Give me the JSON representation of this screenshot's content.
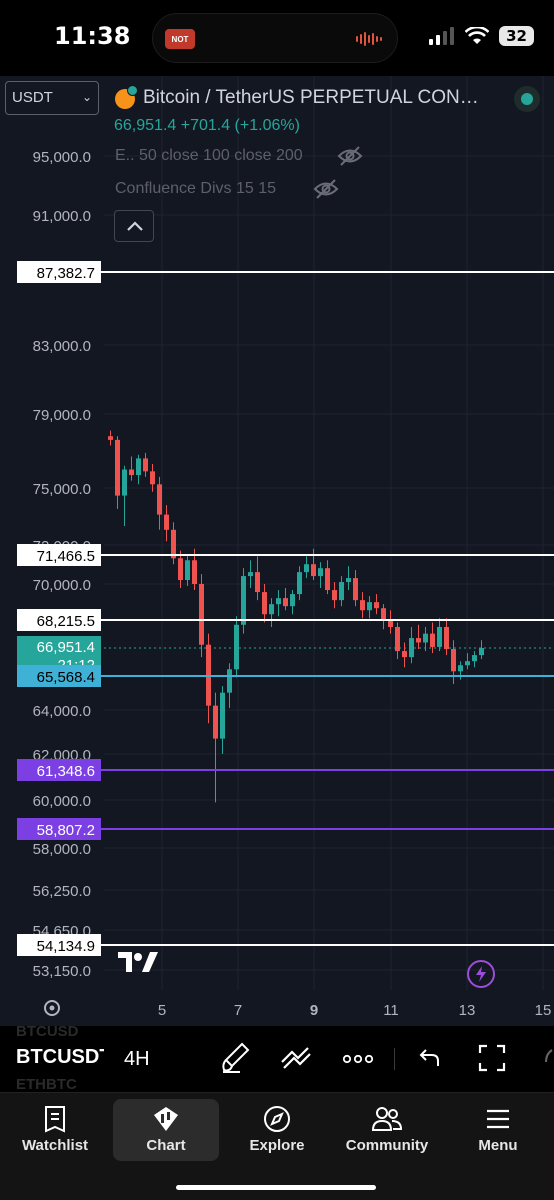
{
  "status": {
    "time": "11:38",
    "island_badge": "NOT",
    "battery": "32"
  },
  "header": {
    "currency_select": "USDT",
    "currency_chevron": "⌄",
    "symbol_title": "Bitcoin / TetherUS PERPETUAL CON…",
    "price_line": "66,951.4 +701.4 (+1.06%)",
    "indicators": [
      "E.. 50 close 100 close 200",
      "Confluence Divs 15 15"
    ]
  },
  "colors": {
    "background": "#131722",
    "grid": "#1f2330",
    "up": "#26a69a",
    "down": "#ef5350",
    "level_white": "#ffffff",
    "level_purple": "#7b3fe4",
    "level_cyan": "#3fb1d6",
    "text": "#d1d4dc"
  },
  "chart_data": {
    "type": "candlestick",
    "price_axis": [
      "95,000.0",
      "91,000.0",
      "83,000.0",
      "79,000.0",
      "75,000.0",
      "72,000.0",
      "70,000.0",
      "64,000.0",
      "62,000.0",
      "60,000.0",
      "58,000.0",
      "56,250.0",
      "54,650.0",
      "53,150.0"
    ],
    "time_axis": [
      "5",
      "7",
      "9",
      "11",
      "13",
      "15"
    ],
    "horizontal_levels": [
      {
        "price": 87382.7,
        "label": "87,382.7",
        "color": "white"
      },
      {
        "price": 71466.5,
        "label": "71,466.5",
        "color": "white"
      },
      {
        "price": 68215.5,
        "label": "68,215.5",
        "color": "white"
      },
      {
        "price": 65568.4,
        "label": "65,568.4",
        "color": "cyan"
      },
      {
        "price": 61348.6,
        "label": "61,348.6",
        "color": "purple"
      },
      {
        "price": 58807.2,
        "label": "58,807.2",
        "color": "purple"
      },
      {
        "price": 54134.9,
        "label": "54,134.9",
        "color": "white"
      }
    ],
    "last_price": {
      "value": "66,951.4",
      "countdown": "21:12"
    },
    "candles": [
      [
        77800,
        78100,
        77300,
        77600
      ],
      [
        77600,
        77800,
        73900,
        74600
      ],
      [
        74600,
        76200,
        73000,
        76000
      ],
      [
        76000,
        76700,
        75400,
        75700
      ],
      [
        75700,
        76800,
        75200,
        76600
      ],
      [
        76600,
        76900,
        75600,
        75900
      ],
      [
        75900,
        76300,
        74800,
        75200
      ],
      [
        75200,
        75600,
        72800,
        73600
      ],
      [
        73600,
        74100,
        72200,
        72800
      ],
      [
        72800,
        73200,
        71000,
        71300
      ],
      [
        71300,
        71700,
        69800,
        70200
      ],
      [
        70200,
        71500,
        69900,
        71200
      ],
      [
        71200,
        71800,
        69700,
        70000
      ],
      [
        70000,
        70500,
        66500,
        67100
      ],
      [
        67100,
        67600,
        63400,
        64200
      ],
      [
        64200,
        64800,
        59900,
        62700
      ],
      [
        62700,
        65100,
        62000,
        64800
      ],
      [
        64800,
        66200,
        64100,
        65900
      ],
      [
        65900,
        68400,
        65500,
        68000
      ],
      [
        68000,
        70800,
        67600,
        70400
      ],
      [
        70400,
        71200,
        69800,
        70600
      ],
      [
        70600,
        71400,
        69200,
        69600
      ],
      [
        69600,
        70000,
        68100,
        68500
      ],
      [
        68500,
        69300,
        67900,
        69000
      ],
      [
        69000,
        69700,
        68400,
        69300
      ],
      [
        69300,
        69800,
        68700,
        68900
      ],
      [
        68900,
        69700,
        68500,
        69500
      ],
      [
        69500,
        70900,
        69200,
        70600
      ],
      [
        70600,
        71400,
        70300,
        71000
      ],
      [
        71000,
        71800,
        70200,
        70400
      ],
      [
        70400,
        71100,
        69800,
        70800
      ],
      [
        70800,
        71200,
        69500,
        69700
      ],
      [
        69700,
        70100,
        68800,
        69200
      ],
      [
        69200,
        70400,
        68900,
        70100
      ],
      [
        70100,
        70900,
        69700,
        70300
      ],
      [
        70300,
        70700,
        68900,
        69200
      ],
      [
        69200,
        69600,
        68300,
        68700
      ],
      [
        68700,
        69400,
        68300,
        69100
      ],
      [
        69100,
        69500,
        68500,
        68800
      ],
      [
        68800,
        69000,
        67800,
        68200
      ],
      [
        68200,
        68700,
        67600,
        67900
      ],
      [
        67900,
        68100,
        66400,
        66800
      ],
      [
        66800,
        67200,
        66000,
        66500
      ],
      [
        66500,
        67900,
        66200,
        67400
      ],
      [
        67400,
        68000,
        66900,
        67200
      ],
      [
        67200,
        67900,
        66800,
        67600
      ],
      [
        67600,
        68100,
        66700,
        67000
      ],
      [
        67000,
        68300,
        66800,
        67900
      ],
      [
        67900,
        68300,
        66600,
        66900
      ],
      [
        66900,
        67300,
        65200,
        65800
      ],
      [
        65800,
        66300,
        65400,
        66100
      ],
      [
        66100,
        66700,
        65900,
        66300
      ],
      [
        66300,
        66800,
        66000,
        66600
      ],
      [
        66600,
        67300,
        66400,
        66951
      ]
    ]
  },
  "toolbar": {
    "ghost_top": "BTCUSD",
    "symbol": "BTCUSDT",
    "interval": "4H",
    "ghost_bottom": "ETHBTC"
  },
  "tabs": [
    {
      "label": "Watchlist"
    },
    {
      "label": "Chart"
    },
    {
      "label": "Explore"
    },
    {
      "label": "Community"
    },
    {
      "label": "Menu"
    }
  ]
}
